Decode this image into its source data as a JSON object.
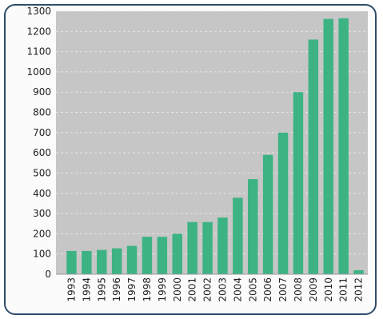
{
  "chart_data": {
    "type": "bar",
    "title": "",
    "xlabel": "",
    "ylabel": "",
    "ylim": [
      0,
      1300
    ],
    "yticks": [
      0,
      100,
      200,
      300,
      400,
      500,
      600,
      700,
      800,
      900,
      1000,
      1100,
      1200,
      1300
    ],
    "grid": true,
    "categories": [
      "1993",
      "1994",
      "1995",
      "1996",
      "1997",
      "1998",
      "1999",
      "2000",
      "2001",
      "2002",
      "2003",
      "2004",
      "2005",
      "2006",
      "2007",
      "2008",
      "2009",
      "2010",
      "2011",
      "2012"
    ],
    "values": [
      115,
      115,
      120,
      128,
      140,
      185,
      185,
      200,
      258,
      258,
      280,
      378,
      470,
      590,
      700,
      900,
      1160,
      1262,
      1265,
      20
    ],
    "colors": {
      "bar": "#3db384",
      "plot_bg": "#c6c6c6",
      "grid": "#e6e6e6",
      "frame": "#2f4d6a"
    }
  }
}
